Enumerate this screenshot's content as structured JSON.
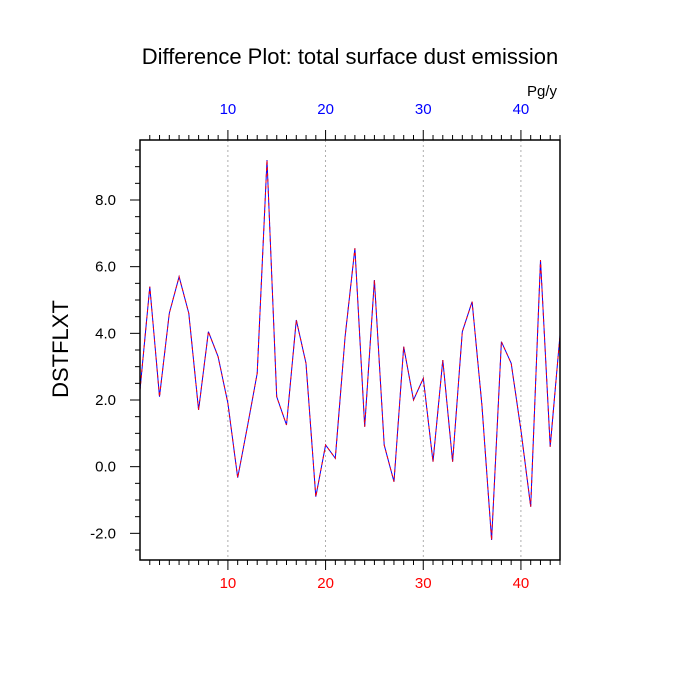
{
  "chart_data": {
    "type": "line",
    "title": "Difference Plot: total surface dust emission",
    "units_label": "Pg/y",
    "ylabel": "DSTFLXT",
    "xlabel": "",
    "xlim": [
      1,
      44
    ],
    "ylim": [
      -2.8,
      9.8
    ],
    "x_ticks": [
      10,
      20,
      30,
      40
    ],
    "x_tick_labels": [
      "10",
      "20",
      "30",
      "40"
    ],
    "y_ticks": [
      -2.0,
      0.0,
      2.0,
      4.0,
      6.0,
      8.0
    ],
    "y_tick_labels": [
      "-2.0",
      "0.0",
      "2.0",
      "4.0",
      "6.0",
      "8.0"
    ],
    "grid": "vertical dotted lines at major x ticks",
    "colors": {
      "bottom_tick_labels": "#ff0000",
      "top_tick_labels": "#0000ff",
      "line_primary": "#0000ff",
      "line_secondary": "#ff0000"
    },
    "series": [
      {
        "x": [
          1,
          2,
          3,
          4,
          5,
          6,
          7,
          8,
          9,
          10,
          11,
          12,
          13,
          14,
          15,
          16,
          17,
          18,
          19,
          20,
          21,
          22,
          23,
          24,
          25,
          26,
          27,
          28,
          29,
          30,
          31,
          32,
          33,
          34,
          35,
          36,
          37,
          38,
          39,
          40,
          41,
          42,
          43,
          44
        ],
        "values": [
          2.3,
          5.4,
          2.1,
          4.6,
          5.7,
          4.6,
          1.7,
          4.05,
          3.3,
          1.9,
          -0.33,
          1.2,
          2.8,
          9.2,
          2.1,
          1.25,
          4.4,
          3.1,
          -0.9,
          0.65,
          0.25,
          3.9,
          6.55,
          1.2,
          5.6,
          0.65,
          -0.45,
          3.6,
          2.0,
          2.65,
          0.15,
          3.2,
          0.15,
          4.05,
          4.95,
          1.85,
          -2.2,
          3.75,
          3.1,
          1.1,
          -1.2,
          6.2,
          0.6,
          3.95
        ]
      }
    ]
  }
}
